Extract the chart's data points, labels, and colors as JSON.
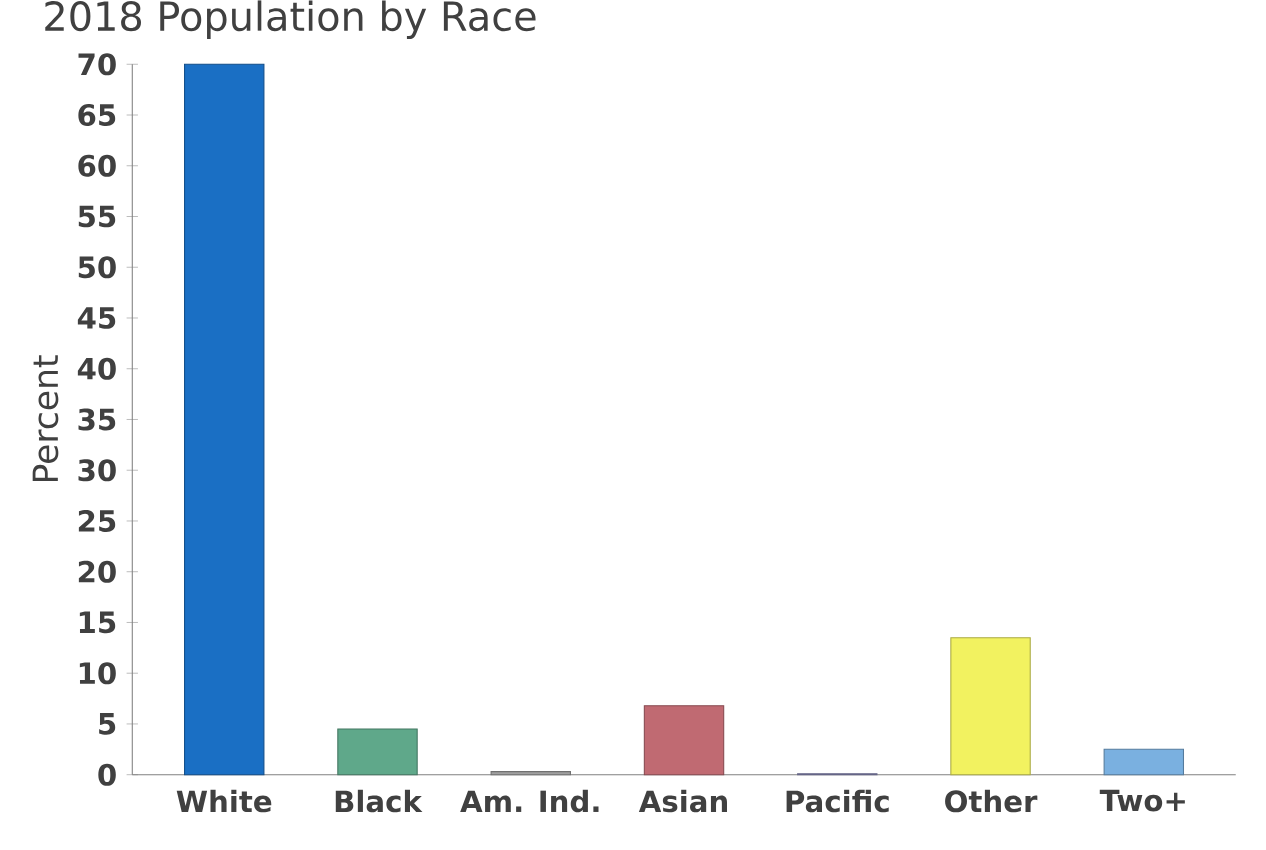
{
  "chart_data": {
    "type": "bar",
    "title": "2018 Population by Race",
    "ylabel": "Percent",
    "categories": [
      "White",
      "Black",
      "Am. Ind.",
      "Asian",
      "Pacific",
      "Other",
      "Two+"
    ],
    "values": [
      70,
      4.5,
      0.3,
      6.8,
      0.1,
      13.5,
      2.5
    ],
    "colors": [
      "#1a6fc4",
      "#5fa88a",
      "#a0a0a0",
      "#c06a72",
      "#9090c0",
      "#f2f260",
      "#7ab0e0"
    ],
    "ylim": [
      0,
      70
    ],
    "yticks": [
      0,
      5,
      10,
      15,
      20,
      25,
      30,
      35,
      40,
      45,
      50,
      55,
      60,
      65,
      70
    ]
  }
}
